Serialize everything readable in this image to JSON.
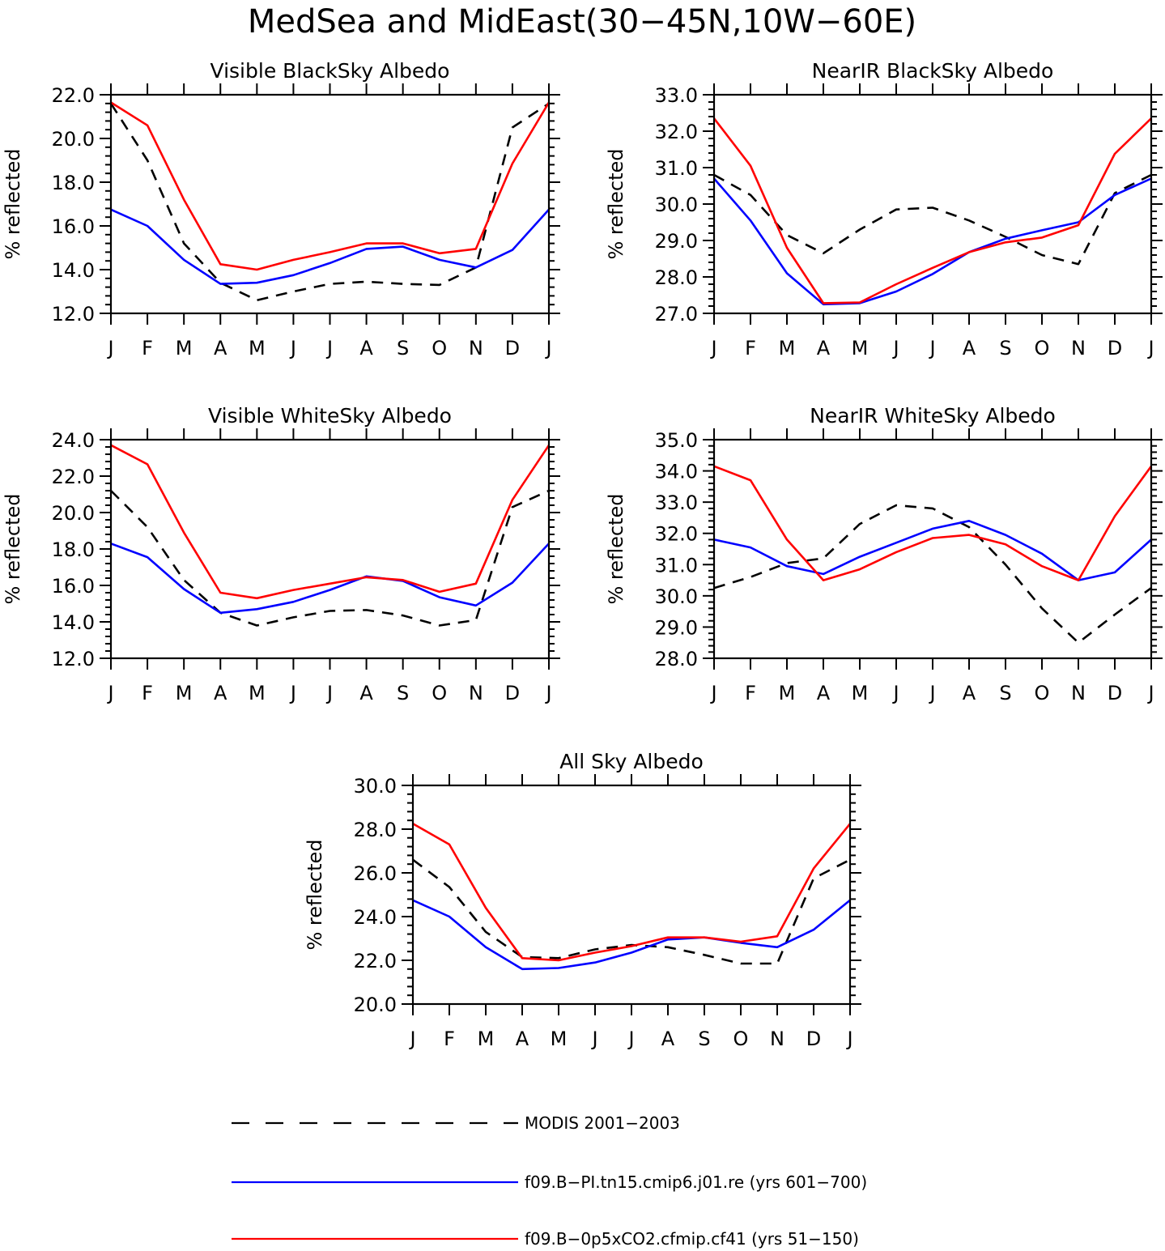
{
  "figure": {
    "title": "MedSea and MidEast(30−45N,10W−60E)"
  },
  "styles": {
    "MODIS": {
      "color": "#000000",
      "dash": "14,10"
    },
    "PI": {
      "color": "#0000ff",
      "dash": ""
    },
    "CO2": {
      "color": "#ff0000",
      "dash": ""
    }
  },
  "chart_data": [
    {
      "type": "line",
      "title": "Visible BlackSky Albedo",
      "ylabel": "% reflected",
      "ylim": [
        12.0,
        22.0
      ],
      "yticks": [
        "12.0",
        "14.0",
        "16.0",
        "18.0",
        "20.0",
        "22.0"
      ],
      "categories": [
        "J",
        "F",
        "M",
        "A",
        "M",
        "J",
        "J",
        "A",
        "S",
        "O",
        "N",
        "D",
        "J"
      ],
      "series": [
        {
          "name": "MODIS 2001−2003",
          "key": "MODIS",
          "values": [
            21.6,
            19.0,
            15.2,
            13.4,
            12.6,
            13.0,
            13.35,
            13.45,
            13.35,
            13.3,
            14.1,
            20.5,
            21.6
          ]
        },
        {
          "name": "f09.B−PI.tn15.cmip6.j01.re (yrs 601−700)",
          "key": "PI",
          "values": [
            16.75,
            16.0,
            14.45,
            13.35,
            13.4,
            13.75,
            14.3,
            14.95,
            15.05,
            14.45,
            14.1,
            14.9,
            16.75
          ]
        },
        {
          "name": "f09.B−0p5xCO2.cfmip.cf41 (yrs 51−150)",
          "key": "CO2",
          "values": [
            21.65,
            20.6,
            17.2,
            14.25,
            14.0,
            14.45,
            14.8,
            15.2,
            15.2,
            14.75,
            14.95,
            18.85,
            21.65
          ]
        }
      ]
    },
    {
      "type": "line",
      "title": "NearIR BlackSky Albedo",
      "ylabel": "% reflected",
      "ylim": [
        27.0,
        33.0
      ],
      "yticks": [
        "27.0",
        "28.0",
        "29.0",
        "30.0",
        "31.0",
        "32.0",
        "33.0"
      ],
      "categories": [
        "J",
        "F",
        "M",
        "A",
        "M",
        "J",
        "J",
        "A",
        "S",
        "O",
        "N",
        "D",
        "J"
      ],
      "series": [
        {
          "name": "MODIS 2001−2003",
          "key": "MODIS",
          "values": [
            30.8,
            30.25,
            29.15,
            28.65,
            29.3,
            29.85,
            29.9,
            29.55,
            29.1,
            28.6,
            28.35,
            30.3,
            30.8
          ]
        },
        {
          "name": "f09.B−PI.tn15.cmip6.j01.re (yrs 601−700)",
          "key": "PI",
          "values": [
            30.7,
            29.55,
            28.1,
            27.25,
            27.28,
            27.6,
            28.08,
            28.68,
            29.05,
            29.28,
            29.5,
            30.25,
            30.7
          ]
        },
        {
          "name": "f09.B−0p5xCO2.cfmip.cf41 (yrs 51−150)",
          "key": "CO2",
          "values": [
            32.35,
            31.05,
            28.8,
            27.28,
            27.3,
            27.8,
            28.25,
            28.68,
            28.95,
            29.08,
            29.42,
            31.38,
            32.35
          ]
        }
      ]
    },
    {
      "type": "line",
      "title": "Visible WhiteSky Albedo",
      "ylabel": "% reflected",
      "ylim": [
        12.0,
        24.0
      ],
      "yticks": [
        "12.0",
        "14.0",
        "16.0",
        "18.0",
        "20.0",
        "22.0",
        "24.0"
      ],
      "categories": [
        "J",
        "F",
        "M",
        "A",
        "M",
        "J",
        "J",
        "A",
        "S",
        "O",
        "N",
        "D",
        "J"
      ],
      "series": [
        {
          "name": "MODIS 2001−2003",
          "key": "MODIS",
          "values": [
            21.2,
            19.2,
            16.3,
            14.5,
            13.8,
            14.25,
            14.6,
            14.65,
            14.35,
            13.8,
            14.1,
            20.3,
            21.2
          ]
        },
        {
          "name": "f09.B−PI.tn15.cmip6.j01.re (yrs 601−700)",
          "key": "PI",
          "values": [
            18.3,
            17.55,
            15.8,
            14.5,
            14.7,
            15.1,
            15.75,
            16.5,
            16.25,
            15.35,
            14.9,
            16.15,
            18.3
          ]
        },
        {
          "name": "f09.B−0p5xCO2.cfmip.cf41 (yrs 51−150)",
          "key": "CO2",
          "values": [
            23.7,
            22.65,
            18.9,
            15.6,
            15.3,
            15.75,
            16.1,
            16.45,
            16.3,
            15.65,
            16.1,
            20.7,
            23.7
          ]
        }
      ]
    },
    {
      "type": "line",
      "title": "NearIR WhiteSky Albedo",
      "ylabel": "% reflected",
      "ylim": [
        28.0,
        35.0
      ],
      "yticks": [
        "28.0",
        "29.0",
        "30.0",
        "31.0",
        "32.0",
        "33.0",
        "34.0",
        "35.0"
      ],
      "categories": [
        "J",
        "F",
        "M",
        "A",
        "M",
        "J",
        "J",
        "A",
        "S",
        "O",
        "N",
        "D",
        "J"
      ],
      "series": [
        {
          "name": "MODIS 2001−2003",
          "key": "MODIS",
          "values": [
            30.25,
            30.6,
            31.05,
            31.2,
            32.3,
            32.9,
            32.8,
            32.2,
            31.0,
            29.6,
            28.5,
            29.4,
            30.25
          ]
        },
        {
          "name": "f09.B−PI.tn15.cmip6.j01.re (yrs 601−700)",
          "key": "PI",
          "values": [
            31.8,
            31.55,
            30.95,
            30.7,
            31.25,
            31.7,
            32.15,
            32.4,
            31.95,
            31.35,
            30.5,
            30.75,
            31.8
          ]
        },
        {
          "name": "f09.B−0p5xCO2.cfmip.cf41 (yrs 51−150)",
          "key": "CO2",
          "values": [
            34.15,
            33.7,
            31.8,
            30.5,
            30.85,
            31.4,
            31.85,
            31.95,
            31.65,
            30.95,
            30.5,
            32.55,
            34.15
          ]
        }
      ]
    },
    {
      "type": "line",
      "title": "All Sky Albedo",
      "ylabel": "% reflected",
      "ylim": [
        20.0,
        30.0
      ],
      "yticks": [
        "20.0",
        "22.0",
        "24.0",
        "26.0",
        "28.0",
        "30.0"
      ],
      "categories": [
        "J",
        "F",
        "M",
        "A",
        "M",
        "J",
        "J",
        "A",
        "S",
        "O",
        "N",
        "D",
        "J"
      ],
      "series": [
        {
          "name": "MODIS 2001−2003",
          "key": "MODIS",
          "values": [
            26.6,
            25.35,
            23.3,
            22.15,
            22.1,
            22.5,
            22.7,
            22.6,
            22.25,
            21.85,
            21.85,
            25.75,
            26.6
          ]
        },
        {
          "name": "f09.B−PI.tn15.cmip6.j01.re (yrs 601−700)",
          "key": "PI",
          "values": [
            24.75,
            24.0,
            22.6,
            21.6,
            21.65,
            21.9,
            22.35,
            22.95,
            23.05,
            22.8,
            22.6,
            23.4,
            24.75
          ]
        },
        {
          "name": "f09.B−0p5xCO2.cfmip.cf41 (yrs 51−150)",
          "key": "CO2",
          "values": [
            28.25,
            27.3,
            24.4,
            22.1,
            22.0,
            22.35,
            22.65,
            23.05,
            23.05,
            22.85,
            23.1,
            26.2,
            28.25
          ]
        }
      ]
    }
  ],
  "legend": [
    {
      "key": "MODIS",
      "label": "MODIS 2001−2003"
    },
    {
      "key": "PI",
      "label": "f09.B−PI.tn15.cmip6.j01.re (yrs 601−700)"
    },
    {
      "key": "CO2",
      "label": "f09.B−0p5xCO2.cfmip.cf41 (yrs 51−150)"
    }
  ]
}
